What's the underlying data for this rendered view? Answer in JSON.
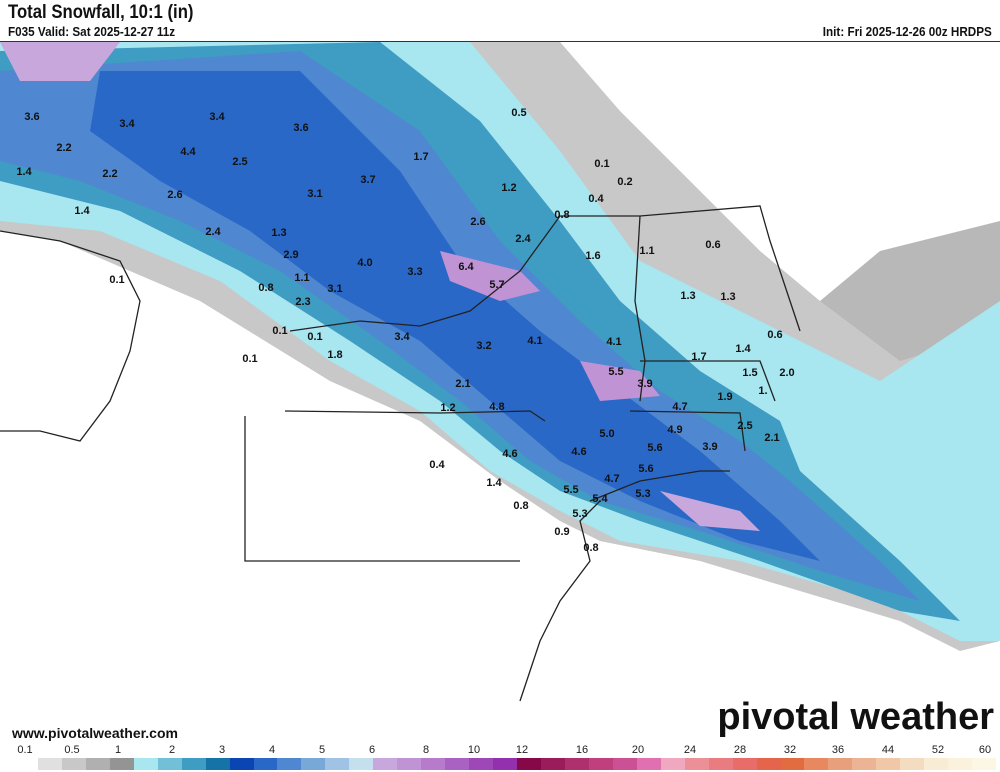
{
  "header": {
    "title": "Total Snowfall, 10:1 (in)",
    "valid": "F035 Valid: Sat 2025-12-27 11z",
    "init": "Init: Fri 2025-12-26 00z HRDPS"
  },
  "footer": {
    "website": "www.pivotalweather.com",
    "logo": "pivotal weather"
  },
  "legend": {
    "labels": [
      "0.1",
      "0.5",
      "1",
      "2",
      "3",
      "4",
      "5",
      "6",
      "8",
      "10",
      "12",
      "16",
      "20",
      "24",
      "28",
      "32",
      "36",
      "44",
      "52",
      "60"
    ],
    "colors": [
      "#ffffff",
      "#e0e0e0",
      "#c8c8c8",
      "#b0b0b0",
      "#949494",
      "#a8e6f0",
      "#72c0d8",
      "#3f9cc2",
      "#1673a8",
      "#0b45b3",
      "#2a68c8",
      "#4f88d0",
      "#78a8d8",
      "#a0c2e4",
      "#c4e0ee",
      "#c8a8dc",
      "#c094d4",
      "#b67ccb",
      "#aa62c2",
      "#9e48b8",
      "#9230ae",
      "#860848",
      "#9a1c5a",
      "#ae306c",
      "#c0407e",
      "#cc5094",
      "#e070b0",
      "#f0a8c0",
      "#ec9098",
      "#e87c80",
      "#e86c68",
      "#e4644c",
      "#e06c40",
      "#e88860",
      "#e8a07c",
      "#ecb494",
      "#f0c8a8",
      "#f4dcc0",
      "#f8ecd4",
      "#faf2dc",
      "#fbf7e4"
    ]
  },
  "map": {
    "accent_colors": {
      "light_cyan": "#a8e6f0",
      "mid_blue": "#4f88d0",
      "deep_blue": "#0b45b3",
      "purple": "#c094d4",
      "gray": "#b0b0b0"
    },
    "point_labels": [
      "3.6",
      "3.4",
      "3.4",
      "3.6",
      "4.4",
      "2.5",
      "2.2",
      "1.4",
      "2.2",
      "2.6",
      "3.1",
      "3.7",
      "1.7",
      "0.5",
      "0.1",
      "0.2",
      "1.2",
      "0.4",
      "0.8",
      "1.4",
      "2.4",
      "1.3",
      "2.6",
      "2.4",
      "1.6",
      "1.1",
      "0.6",
      "2.9",
      "4.0",
      "3.3",
      "6.4",
      "5.7",
      "0.1",
      "0.8",
      "1.1",
      "3.1",
      "2.3",
      "1.3",
      "1.3",
      "0.1",
      "0.1",
      "3.4",
      "3.2",
      "4.1",
      "4.1",
      "0.6",
      "0.1",
      "1.8",
      "1.7",
      "1.4",
      "5.5",
      "3.9",
      "1.5",
      "2.0",
      "1.",
      "2.1",
      "1.9",
      "4.7",
      "1.2",
      "4.8",
      "2.5",
      "2.1",
      "4.9",
      "5.0",
      "3.9",
      "5.6",
      "4.6",
      "4.6",
      "0.4",
      "5.6",
      "4.7",
      "1.4",
      "5.5",
      "5.3",
      "5.4",
      "0.8",
      "5.3",
      "0.9",
      "0.8"
    ]
  }
}
